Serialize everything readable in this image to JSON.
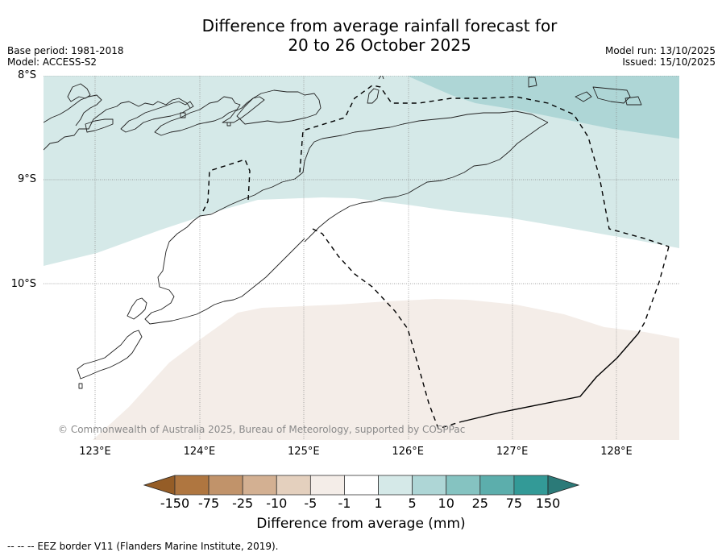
{
  "header": {
    "title_line1": "Difference from average rainfall forecast for",
    "title_line2": "20 to 26 October 2025",
    "base_period": "Base period: 1981-2018",
    "model": "Model: ACCESS-S2",
    "model_run": "Model run: 13/10/2025",
    "issued": "Issued: 15/10/2025"
  },
  "map": {
    "extent": {
      "lon_min": 122.5,
      "lon_max": 128.6,
      "lat_min": -11.5,
      "lat_max": -8.0
    },
    "lat_ticks": [
      {
        "value": -8,
        "label": "8°S"
      },
      {
        "value": -9,
        "label": "9°S"
      },
      {
        "value": -10,
        "label": "10°S"
      }
    ],
    "lon_ticks": [
      {
        "value": 123,
        "label": "123°E"
      },
      {
        "value": 124,
        "label": "124°E"
      },
      {
        "value": 125,
        "label": "125°E"
      },
      {
        "value": 126,
        "label": "126°E"
      },
      {
        "value": 127,
        "label": "127°E"
      },
      {
        "value": 128,
        "label": "128°E"
      }
    ],
    "regions": [
      {
        "name": "wet-1-to-5",
        "category": "1 to 5 mm",
        "color": "#d5e9e8"
      },
      {
        "name": "wet-5-to-10",
        "category": "5 to 10 mm",
        "color": "#aed6d6"
      },
      {
        "name": "near-average",
        "category": "-1 to 1 mm",
        "color": "#ffffff"
      },
      {
        "name": "dry-minus5-to-minus1",
        "category": "-5 to -1 mm",
        "color": "#f4ede8"
      }
    ],
    "copyright": "© Commonwealth of Australia 2025, Bureau of Meteorology, supported by COSPPac"
  },
  "colorbar": {
    "title": "Difference from average (mm)",
    "ticks": [
      "-150",
      "-75",
      "-25",
      "-10",
      "-5",
      "-1",
      "1",
      "5",
      "10",
      "25",
      "75",
      "150"
    ],
    "low_extend_color": "#955d27",
    "high_extend_color": "#2b7a78",
    "bins": [
      {
        "range": "-150 to -75",
        "color": "#af7640"
      },
      {
        "range": "-75 to -25",
        "color": "#c1936a"
      },
      {
        "range": "-25 to -10",
        "color": "#d3b092"
      },
      {
        "range": "-10 to -5",
        "color": "#e4d0be"
      },
      {
        "range": "-5 to -1",
        "color": "#f4ede8"
      },
      {
        "range": "-1 to 1",
        "color": "#ffffff"
      },
      {
        "range": "1 to 5",
        "color": "#d5e9e8"
      },
      {
        "range": "5 to 10",
        "color": "#aed6d6"
      },
      {
        "range": "10 to 25",
        "color": "#85c3c1"
      },
      {
        "range": "25 to 75",
        "color": "#5caeac"
      },
      {
        "range": "75 to 150",
        "color": "#339a97"
      }
    ]
  },
  "footnote": "--  --  -- EEZ border V11 (Flanders Marine Institute, 2019)."
}
